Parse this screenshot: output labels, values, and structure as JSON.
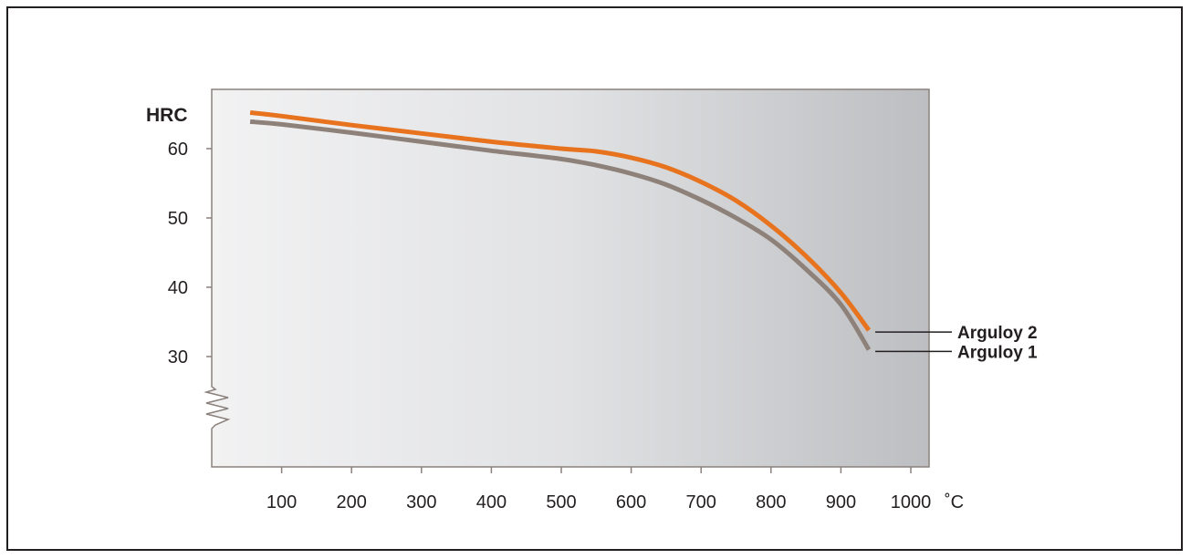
{
  "chart_data": {
    "type": "line",
    "title": "",
    "ylabel": "HRC",
    "xlabel": "",
    "x_unit": "˚C",
    "xlim": [
      0,
      1030
    ],
    "ylim": [
      25,
      65
    ],
    "y_axis_break": true,
    "x_ticks": [
      100,
      200,
      300,
      400,
      500,
      600,
      700,
      800,
      900,
      1000
    ],
    "x_tick_labels": [
      "100",
      "200",
      "300",
      "400",
      "500",
      "600",
      "700",
      "800",
      "900",
      "1000"
    ],
    "y_ticks": [
      60,
      50,
      40,
      30
    ],
    "y_tick_labels": [
      "60",
      "50",
      "40",
      "30"
    ],
    "grid": false,
    "legend": "direct labels at right end of lines",
    "series": [
      {
        "name": "Arguloy 2",
        "color": "#e8731f",
        "x": [
          55,
          100,
          200,
          300,
          400,
          500,
          550,
          600,
          650,
          700,
          750,
          800,
          850,
          900,
          940
        ],
        "y": [
          65.2,
          64.7,
          63.4,
          62.2,
          61.0,
          60.0,
          59.6,
          58.7,
          57.3,
          55.2,
          52.5,
          48.9,
          44.5,
          39.2,
          33.8
        ]
      },
      {
        "name": "Arguloy 1",
        "color": "#8d817a",
        "x": [
          55,
          100,
          200,
          300,
          400,
          500,
          550,
          600,
          650,
          700,
          750,
          800,
          850,
          900,
          940
        ],
        "y": [
          63.9,
          63.5,
          62.3,
          61.0,
          59.7,
          58.5,
          57.6,
          56.4,
          54.8,
          52.6,
          50.0,
          46.9,
          42.6,
          37.5,
          31.0
        ]
      }
    ]
  }
}
